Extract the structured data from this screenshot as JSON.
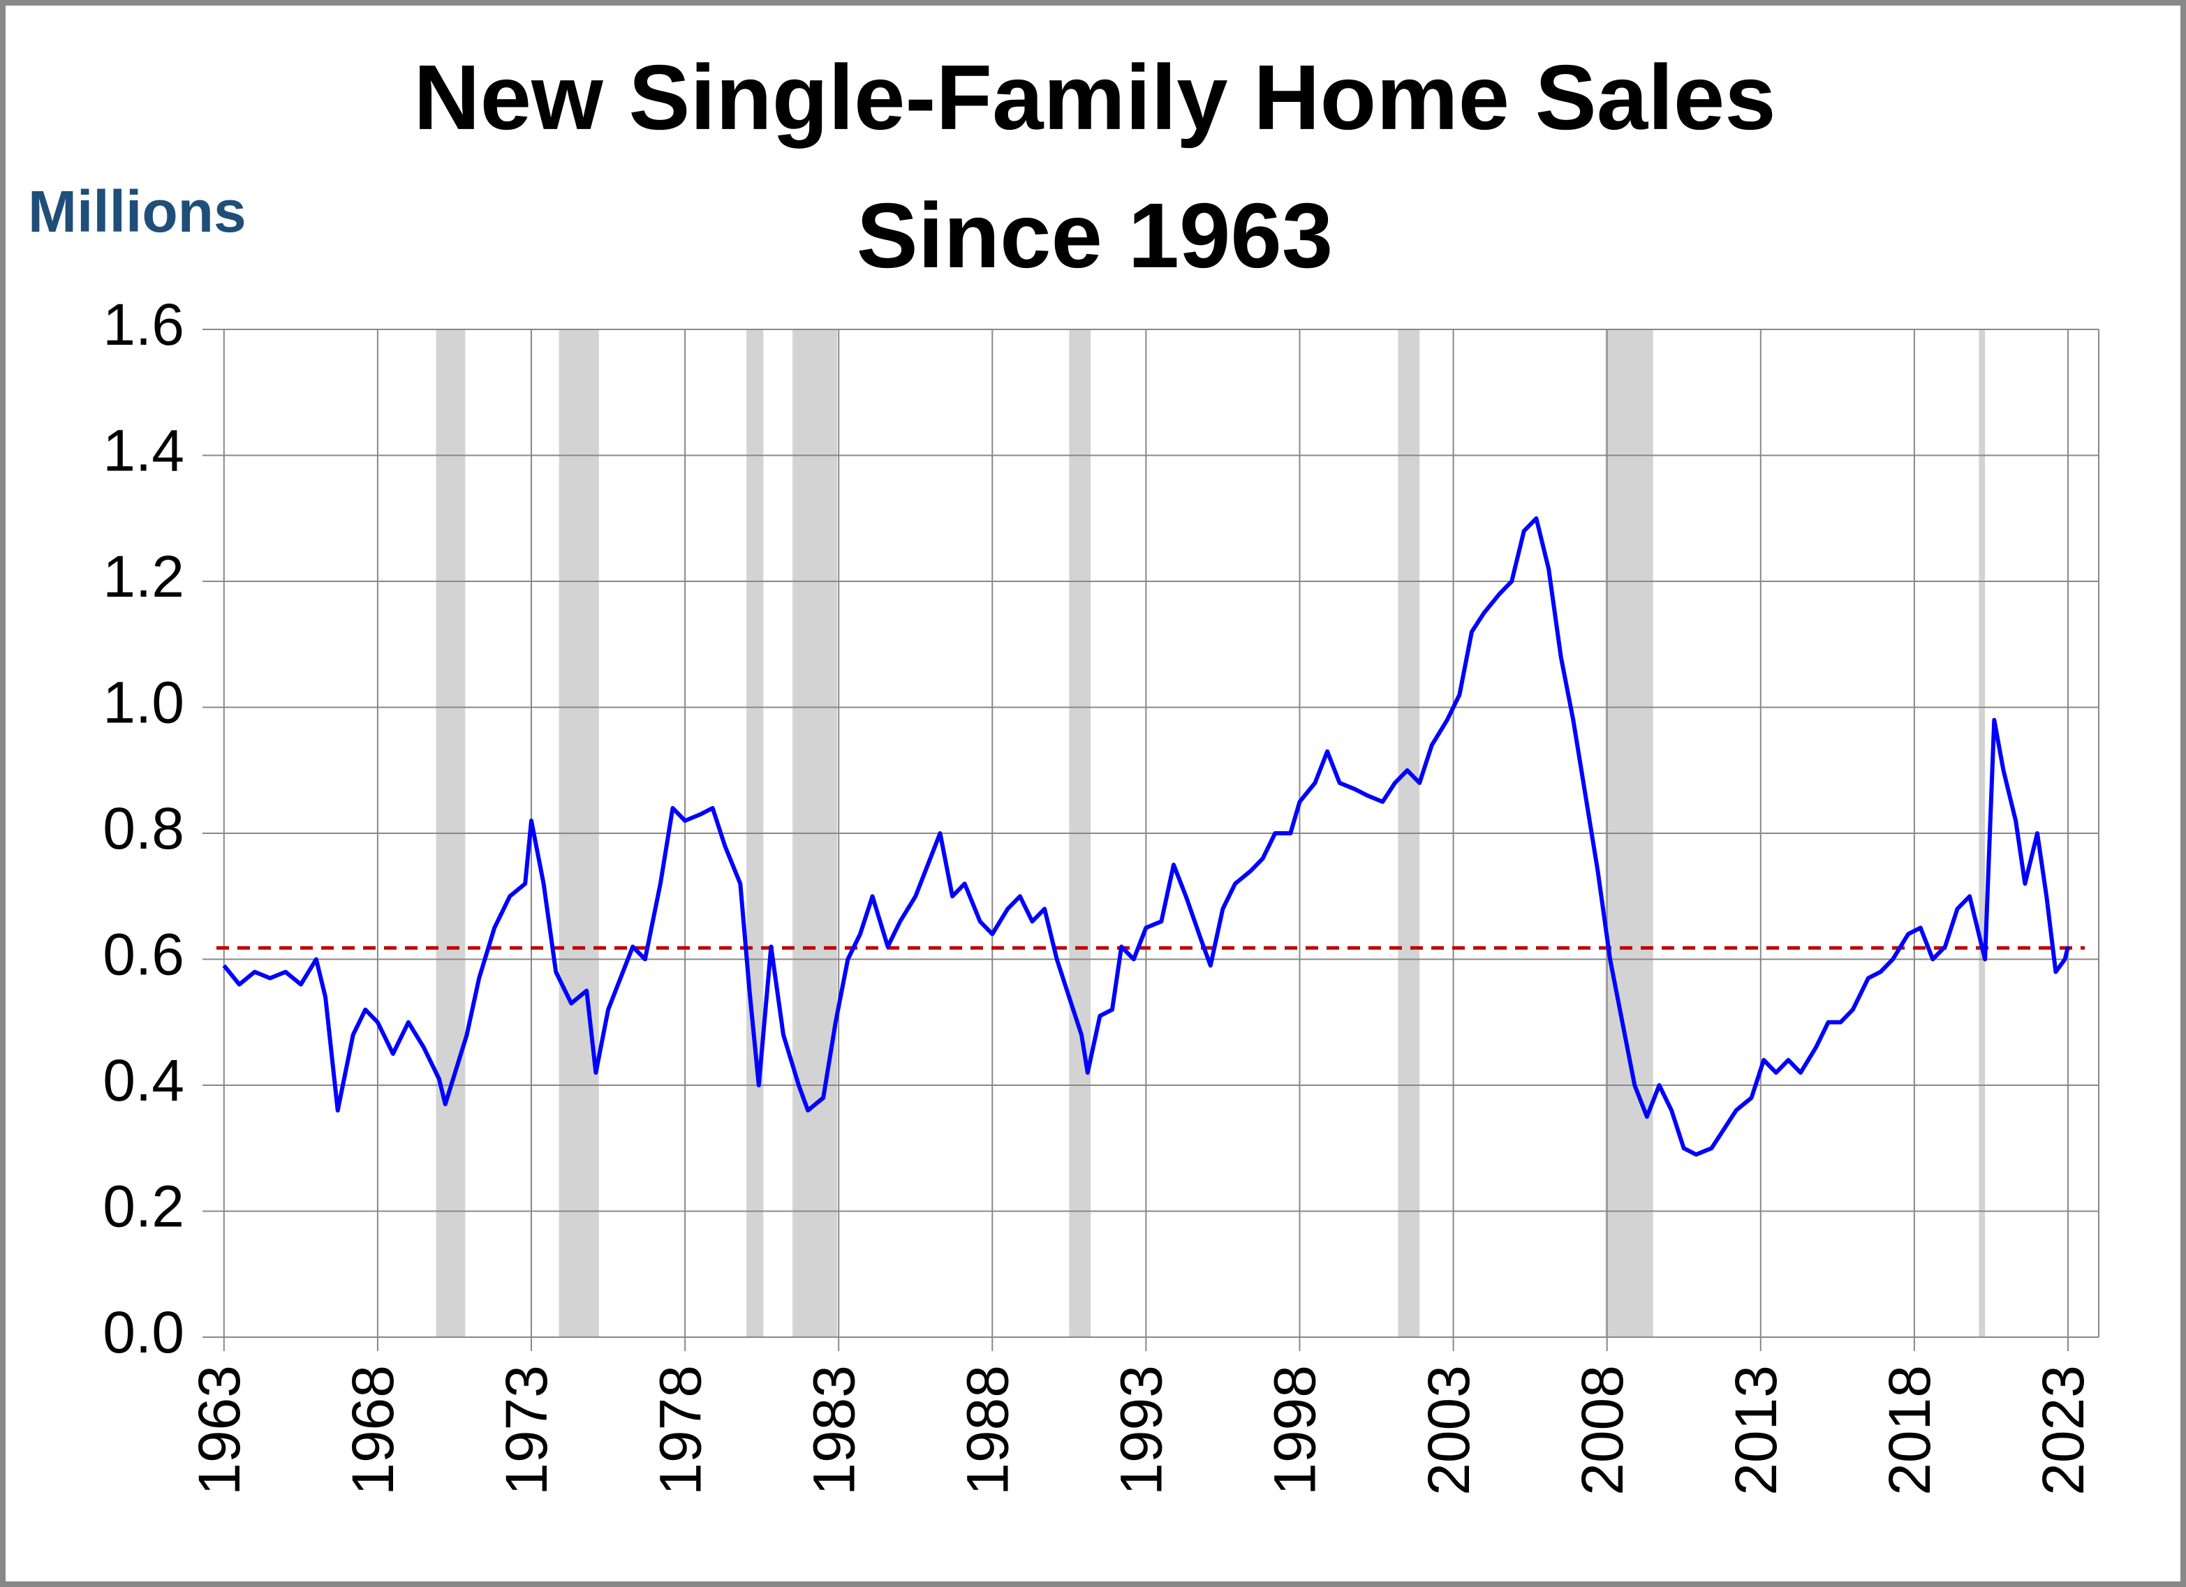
{
  "chart_data": {
    "type": "line",
    "title": [
      "New Single-Family Home Sales",
      "Since 1963"
    ],
    "y_axis_label": "Millions",
    "xlim": [
      1962.3,
      2024.0
    ],
    "xticks": [
      1963,
      1968,
      1973,
      1978,
      1983,
      1988,
      1993,
      1998,
      2003,
      2008,
      2013,
      2018,
      2023
    ],
    "ylim": [
      0,
      1.6
    ],
    "yticks": [
      {
        "value": 0,
        "label": "0.0"
      },
      0.2,
      0.4,
      0.6,
      0.8,
      {
        "value": 1,
        "label": "1.0"
      },
      1.2,
      1.4,
      1.6
    ],
    "grid": true,
    "recessions": [
      [
        1969.9,
        1970.85
      ],
      [
        1973.9,
        1975.2
      ],
      [
        1980.0,
        1980.55
      ],
      [
        1981.5,
        1982.95
      ],
      [
        1990.5,
        1991.2
      ],
      [
        2001.2,
        2001.9
      ],
      [
        2007.95,
        2009.5
      ],
      [
        2020.1,
        2020.3
      ]
    ],
    "recession_color": "#d3d3d3",
    "average": 0.618,
    "average_color": "#c00000",
    "series": [
      {
        "name": "New single-family home sales",
        "color": "#0000ff",
        "x": [
          1963.0,
          1963.5,
          1964.0,
          1964.5,
          1965.0,
          1965.5,
          1966.0,
          1966.3,
          1966.7,
          1967.2,
          1967.6,
          1968.0,
          1968.5,
          1969.0,
          1969.5,
          1970.0,
          1970.2,
          1970.9,
          1971.3,
          1971.8,
          1972.3,
          1972.8,
          1973.0,
          1973.4,
          1973.8,
          1974.3,
          1974.8,
          1975.1,
          1975.5,
          1975.9,
          1976.3,
          1976.7,
          1977.2,
          1977.6,
          1978.0,
          1978.5,
          1978.9,
          1979.3,
          1979.8,
          1980.1,
          1980.4,
          1980.8,
          1981.2,
          1981.7,
          1982.0,
          1982.5,
          1982.9,
          1983.3,
          1983.7,
          1984.1,
          1984.6,
          1985.0,
          1985.5,
          1985.9,
          1986.3,
          1986.7,
          1987.1,
          1987.6,
          1988.0,
          1988.5,
          1988.9,
          1989.3,
          1989.7,
          1990.1,
          1990.5,
          1990.9,
          1991.1,
          1991.5,
          1991.9,
          1992.2,
          1992.6,
          1993.0,
          1993.5,
          1993.9,
          1994.3,
          1994.8,
          1995.1,
          1995.5,
          1995.9,
          1996.4,
          1996.8,
          1997.2,
          1997.7,
          1998.0,
          1998.5,
          1998.9,
          1999.3,
          1999.8,
          2000.2,
          2000.7,
          2001.1,
          2001.5,
          2001.9,
          2002.3,
          2002.8,
          2003.2,
          2003.6,
          2004.0,
          2004.5,
          2004.9,
          2005.3,
          2005.7,
          2006.1,
          2006.5,
          2006.9,
          2007.3,
          2007.7,
          2008.1,
          2008.5,
          2008.9,
          2009.3,
          2009.7,
          2010.1,
          2010.5,
          2010.9,
          2011.4,
          2011.8,
          2012.2,
          2012.7,
          2013.1,
          2013.5,
          2013.9,
          2014.3,
          2014.8,
          2015.2,
          2015.6,
          2016.0,
          2016.5,
          2016.9,
          2017.3,
          2017.8,
          2018.2,
          2018.6,
          2019.0,
          2019.4,
          2019.8,
          2020.3,
          2020.6,
          2020.9,
          2021.3,
          2021.6,
          2022.0,
          2022.3,
          2022.6,
          2022.9,
          2023.0
        ],
        "values": [
          0.59,
          0.56,
          0.58,
          0.57,
          0.58,
          0.56,
          0.6,
          0.54,
          0.36,
          0.48,
          0.52,
          0.5,
          0.45,
          0.5,
          0.46,
          0.41,
          0.37,
          0.48,
          0.57,
          0.65,
          0.7,
          0.72,
          0.82,
          0.72,
          0.58,
          0.53,
          0.55,
          0.42,
          0.52,
          0.57,
          0.62,
          0.6,
          0.72,
          0.84,
          0.82,
          0.83,
          0.84,
          0.78,
          0.72,
          0.55,
          0.4,
          0.62,
          0.48,
          0.4,
          0.36,
          0.38,
          0.5,
          0.6,
          0.64,
          0.7,
          0.62,
          0.66,
          0.7,
          0.75,
          0.8,
          0.7,
          0.72,
          0.66,
          0.64,
          0.68,
          0.7,
          0.66,
          0.68,
          0.6,
          0.54,
          0.48,
          0.42,
          0.51,
          0.52,
          0.62,
          0.6,
          0.65,
          0.66,
          0.75,
          0.7,
          0.63,
          0.59,
          0.68,
          0.72,
          0.74,
          0.76,
          0.8,
          0.8,
          0.85,
          0.88,
          0.93,
          0.88,
          0.87,
          0.86,
          0.85,
          0.88,
          0.9,
          0.88,
          0.94,
          0.98,
          1.02,
          1.12,
          1.15,
          1.18,
          1.2,
          1.28,
          1.3,
          1.22,
          1.08,
          0.98,
          0.86,
          0.74,
          0.6,
          0.5,
          0.4,
          0.35,
          0.4,
          0.36,
          0.3,
          0.29,
          0.3,
          0.33,
          0.36,
          0.38,
          0.44,
          0.42,
          0.44,
          0.42,
          0.46,
          0.5,
          0.5,
          0.52,
          0.57,
          0.58,
          0.6,
          0.64,
          0.65,
          0.6,
          0.62,
          0.68,
          0.7,
          0.6,
          0.98,
          0.9,
          0.82,
          0.72,
          0.8,
          0.7,
          0.58,
          0.6,
          0.62
        ]
      }
    ]
  }
}
